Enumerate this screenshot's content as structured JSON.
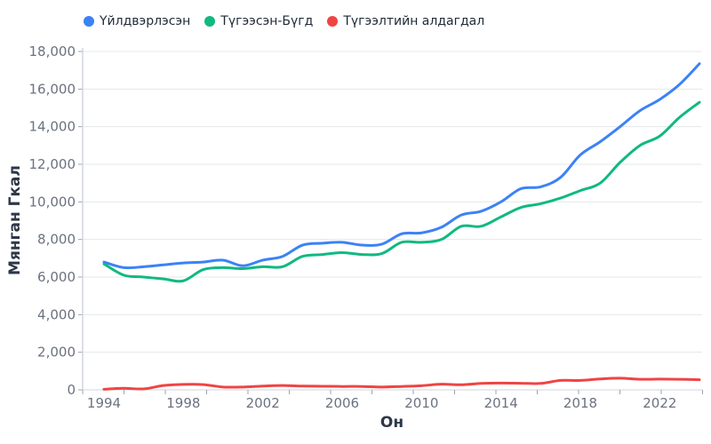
{
  "chart_data": {
    "type": "line",
    "title": "",
    "xlabel": "Он",
    "ylabel": "Мянган Гкал",
    "ylim": [
      0,
      18000
    ],
    "yticks": [
      0,
      2000,
      4000,
      6000,
      8000,
      10000,
      12000,
      14000,
      16000,
      18000
    ],
    "ytick_labels": [
      "0",
      "2,000",
      "4,000",
      "6,000",
      "8,000",
      "10,000",
      "12,000",
      "14,000",
      "16,000",
      "18,000"
    ],
    "xtick_labels": [
      "1994",
      "1998",
      "2002",
      "2006",
      "2010",
      "2014",
      "2018",
      "2022"
    ],
    "grid": true,
    "legend_position": "top-left",
    "x": [
      1994,
      1995,
      1996,
      1997,
      1998,
      1999,
      2000,
      2001,
      2002,
      2003,
      2004,
      2005,
      2006,
      2007,
      2008,
      2009,
      2010,
      2011,
      2012,
      2013,
      2014,
      2015,
      2016,
      2017,
      2018,
      2019,
      2020,
      2021,
      2022,
      2023,
      2024
    ],
    "series": [
      {
        "name": "Үйлдвэрлэсэн",
        "color": "#3b82f6",
        "values": [
          6800,
          6500,
          6550,
          6650,
          6750,
          6800,
          6900,
          6600,
          6900,
          7100,
          7700,
          7800,
          7850,
          7700,
          7750,
          8300,
          8350,
          8650,
          9300,
          9500,
          10000,
          10700,
          10800,
          11300,
          12500,
          13200,
          14000,
          14850,
          15450,
          16250,
          17350
        ]
      },
      {
        "name": "Түгээсэн-Бүгд",
        "color": "#10b981",
        "values": [
          6700,
          6100,
          6000,
          5900,
          5800,
          6400,
          6500,
          6450,
          6550,
          6550,
          7100,
          7200,
          7300,
          7200,
          7250,
          7850,
          7850,
          8000,
          8700,
          8700,
          9200,
          9700,
          9900,
          10200,
          10600,
          11000,
          12100,
          13000,
          13500,
          14500,
          15300
        ]
      },
      {
        "name": "Түгээлтийн алдагдал",
        "color": "#ef4444",
        "values": [
          30,
          80,
          50,
          230,
          290,
          280,
          150,
          150,
          200,
          230,
          200,
          190,
          180,
          180,
          150,
          180,
          220,
          300,
          270,
          340,
          360,
          350,
          340,
          500,
          500,
          580,
          620,
          560,
          570,
          560,
          540
        ]
      }
    ]
  }
}
